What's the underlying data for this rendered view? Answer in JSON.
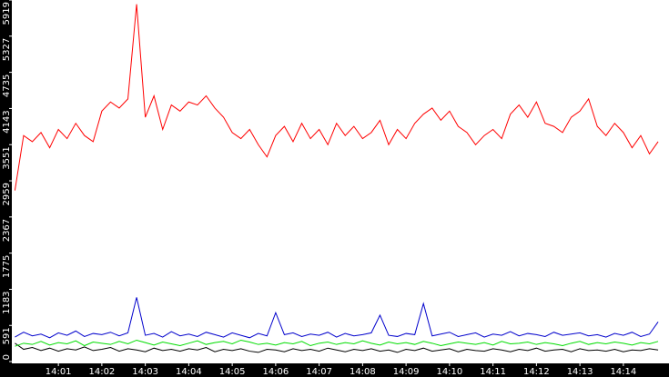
{
  "chart_data": {
    "type": "line",
    "x": [
      0,
      0.2,
      0.4,
      0.6,
      0.8,
      1,
      1.2,
      1.4,
      1.6,
      1.8,
      2,
      2.2,
      2.4,
      2.6,
      2.8,
      3,
      3.2,
      3.4,
      3.6,
      3.8,
      4,
      4.2,
      4.4,
      4.6,
      4.8,
      5,
      5.2,
      5.4,
      5.6,
      5.8,
      6,
      6.2,
      6.4,
      6.6,
      6.8,
      7,
      7.2,
      7.4,
      7.6,
      7.8,
      8,
      8.2,
      8.4,
      8.6,
      8.8,
      9,
      9.2,
      9.4,
      9.6,
      9.8,
      10,
      10.2,
      10.4,
      10.6,
      10.8,
      11,
      11.2,
      11.4,
      11.6,
      11.8,
      12,
      12.2,
      12.4,
      12.6,
      12.8,
      13,
      13.2,
      13.4,
      13.6,
      13.8,
      14,
      14.2,
      14.4,
      14.6,
      14.8
    ],
    "xlim": [
      -0.05,
      15.05
    ],
    "xticks": [
      {
        "value": 1,
        "label": "14:01"
      },
      {
        "value": 2,
        "label": "14:02"
      },
      {
        "value": 3,
        "label": "14:03"
      },
      {
        "value": 4,
        "label": "14:04"
      },
      {
        "value": 5,
        "label": "14:05"
      },
      {
        "value": 6,
        "label": "14:06"
      },
      {
        "value": 7,
        "label": "14:07"
      },
      {
        "value": 8,
        "label": "14:08"
      },
      {
        "value": 9,
        "label": "14:09"
      },
      {
        "value": 10,
        "label": "14:10"
      },
      {
        "value": 11,
        "label": "14:11"
      },
      {
        "value": 12,
        "label": "14:12"
      },
      {
        "value": 13,
        "label": "14:13"
      },
      {
        "value": 14,
        "label": "14:14"
      }
    ],
    "ylim": [
      0,
      5919
    ],
    "yticks": [
      0,
      591,
      1183,
      1775,
      2367,
      2959,
      3551,
      4143,
      4735,
      5327,
      5919
    ],
    "series": [
      {
        "color": "#ff0000",
        "values": [
          2800,
          3700,
          3600,
          3750,
          3500,
          3800,
          3650,
          3900,
          3700,
          3600,
          4100,
          4250,
          4150,
          4300,
          5850,
          4000,
          4350,
          3800,
          4200,
          4100,
          4250,
          4200,
          4350,
          4150,
          4000,
          3750,
          3650,
          3800,
          3550,
          3350,
          3700,
          3850,
          3600,
          3900,
          3650,
          3800,
          3550,
          3900,
          3700,
          3850,
          3650,
          3750,
          3950,
          3550,
          3800,
          3650,
          3900,
          4050,
          4150,
          3950,
          4100,
          3850,
          3750,
          3550,
          3700,
          3800,
          3650,
          4050,
          4200,
          4000,
          4250,
          3900,
          3850,
          3750,
          4000,
          4100,
          4300,
          3850,
          3700,
          3900,
          3750,
          3500,
          3700,
          3400,
          3600
        ]
      },
      {
        "color": "#0000cc",
        "values": [
          400,
          480,
          420,
          450,
          390,
          470,
          430,
          500,
          410,
          460,
          440,
          480,
          420,
          470,
          1050,
          430,
          460,
          400,
          490,
          420,
          450,
          410,
          480,
          440,
          400,
          470,
          430,
          390,
          460,
          420,
          800,
          440,
          470,
          410,
          450,
          430,
          480,
          400,
          460,
          420,
          440,
          470,
          760,
          430,
          410,
          460,
          440,
          950,
          420,
          450,
          480,
          410,
          440,
          470,
          400,
          450,
          430,
          490,
          420,
          460,
          440,
          410,
          480,
          430,
          450,
          470,
          420,
          440,
          400,
          460,
          430,
          480,
          410,
          450,
          650
        ]
      },
      {
        "color": "#00dd00",
        "values": [
          250,
          300,
          280,
          330,
          270,
          310,
          290,
          340,
          260,
          320,
          300,
          280,
          330,
          290,
          350,
          310,
          270,
          320,
          290,
          260,
          300,
          340,
          280,
          310,
          330,
          290,
          350,
          320,
          280,
          300,
          270,
          310,
          290,
          330,
          260,
          300,
          320,
          280,
          310,
          290,
          340,
          300,
          270,
          320,
          290,
          310,
          280,
          330,
          300,
          260,
          290,
          320,
          300,
          280,
          310,
          270,
          330,
          290,
          300,
          320,
          280,
          310,
          290,
          260,
          300,
          330,
          280,
          310,
          290,
          320,
          300,
          270,
          310,
          290,
          330
        ]
      },
      {
        "color": "#000000",
        "values": [
          300,
          200,
          230,
          180,
          220,
          170,
          210,
          190,
          240,
          180,
          200,
          230,
          170,
          210,
          190,
          160,
          220,
          180,
          200,
          170,
          210,
          190,
          230,
          160,
          200,
          180,
          210,
          170,
          150,
          200,
          190,
          160,
          210,
          180,
          200,
          170,
          220,
          190,
          160,
          200,
          180,
          210,
          170,
          190,
          150,
          200,
          180,
          220,
          170,
          190,
          210,
          160,
          200,
          180,
          170,
          210,
          190,
          160,
          200,
          180,
          220,
          170,
          190,
          200,
          160,
          210,
          180,
          190,
          170,
          200,
          160,
          190,
          180,
          210,
          190
        ]
      }
    ]
  }
}
